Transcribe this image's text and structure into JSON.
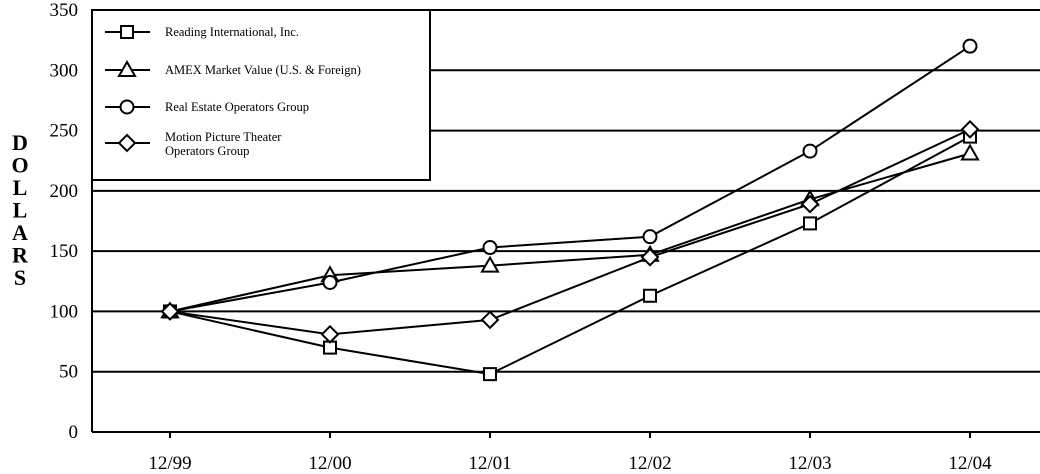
{
  "chart_data": {
    "type": "line",
    "ylabel": "DOLLARS",
    "ylim": [
      0,
      350
    ],
    "yticks": [
      "0",
      "50",
      "100",
      "150",
      "200",
      "250",
      "300",
      "350"
    ],
    "categories": [
      "12/99",
      "12/00",
      "12/01",
      "12/02",
      "12/03",
      "12/04"
    ],
    "grid": "horizontal",
    "legend_position": "top-left",
    "series": [
      {
        "name": "Reading International, Inc.",
        "marker": "square",
        "values": [
          100,
          70,
          48,
          113,
          173,
          245
        ]
      },
      {
        "name": "AMEX Market Value (U.S. & Foreign)",
        "marker": "triangle",
        "values": [
          100,
          130,
          138,
          147,
          193,
          231
        ]
      },
      {
        "name": "Real Estate Operators Group",
        "marker": "circle",
        "values": [
          100,
          124,
          153,
          162,
          233,
          320
        ]
      },
      {
        "name": [
          "Motion Picture Theater",
          "Operators Group"
        ],
        "marker": "diamond",
        "values": [
          100,
          81,
          93,
          145,
          189,
          251
        ]
      }
    ]
  }
}
